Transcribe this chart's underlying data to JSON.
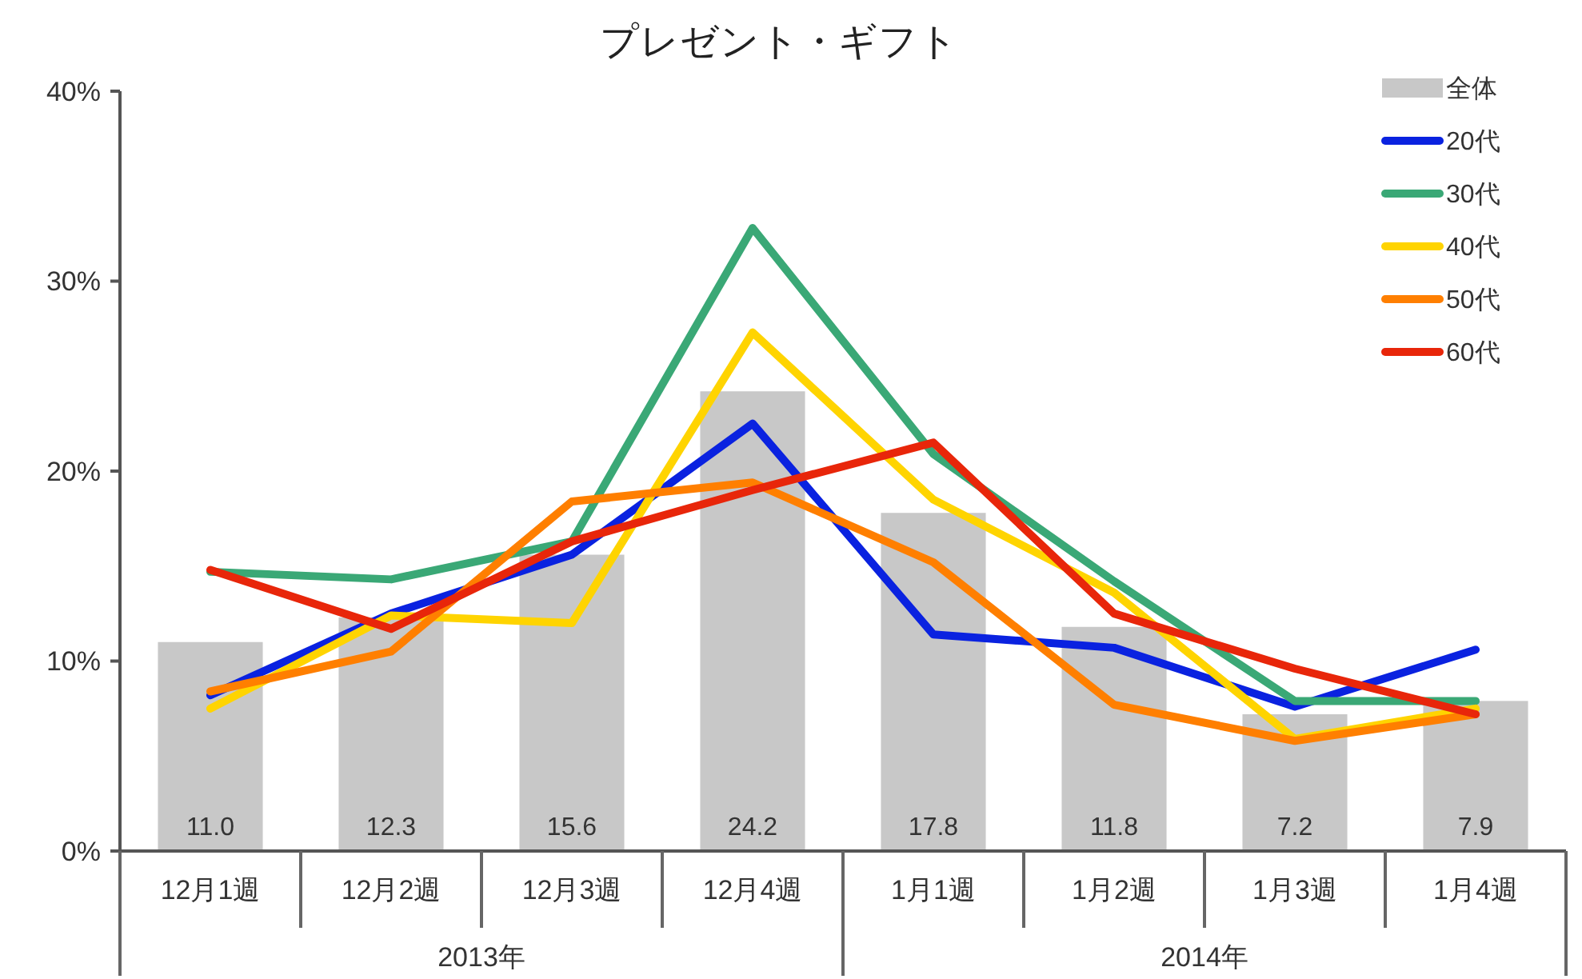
{
  "chart_data": {
    "type": "line",
    "title": "プレゼント・ギフト",
    "categories": [
      "12月1週",
      "12月2週",
      "12月3週",
      "12月4週",
      "1月1週",
      "1月2週",
      "1月3週",
      "1月4週"
    ],
    "annotations": [
      "2013年",
      "2014年"
    ],
    "ylim": [
      0,
      40
    ],
    "yticks": [
      {
        "value": 0,
        "label": "0%"
      },
      {
        "value": 10,
        "label": "10%"
      },
      {
        "value": 20,
        "label": "20%"
      },
      {
        "value": 30,
        "label": "30%"
      },
      {
        "value": 40,
        "label": "40%"
      }
    ],
    "grid": false,
    "legend": "top right",
    "line_style": "solid",
    "marker": "none",
    "series": [
      {
        "type": "bar",
        "name": "全体",
        "color": "#c8c8c8",
        "values": [
          11.0,
          12.3,
          15.6,
          24.2,
          17.8,
          11.8,
          7.2,
          7.9
        ],
        "value_labels": [
          "11.0",
          "12.3",
          "15.6",
          "24.2",
          "17.8",
          "11.8",
          "7.2",
          "7.9"
        ]
      },
      {
        "name": "20代",
        "color": "#0a22e0",
        "values": [
          8.2,
          12.5,
          15.6,
          22.5,
          11.4,
          10.7,
          7.6,
          10.6
        ]
      },
      {
        "name": "30代",
        "color": "#3aa876",
        "values": [
          14.7,
          14.3,
          16.3,
          32.8,
          20.9,
          14.2,
          7.9,
          7.9
        ]
      },
      {
        "name": "40代",
        "color": "#ffd400",
        "values": [
          7.5,
          12.4,
          12.0,
          27.3,
          18.5,
          13.6,
          5.9,
          7.5
        ]
      },
      {
        "name": "50代",
        "color": "#ff7f00",
        "values": [
          8.4,
          10.5,
          18.4,
          19.4,
          15.2,
          7.7,
          5.8,
          7.2
        ]
      },
      {
        "name": "60代",
        "color": "#e8260a",
        "values": [
          14.8,
          11.7,
          16.3,
          19.0,
          21.5,
          12.5,
          9.6,
          7.2
        ]
      }
    ]
  }
}
